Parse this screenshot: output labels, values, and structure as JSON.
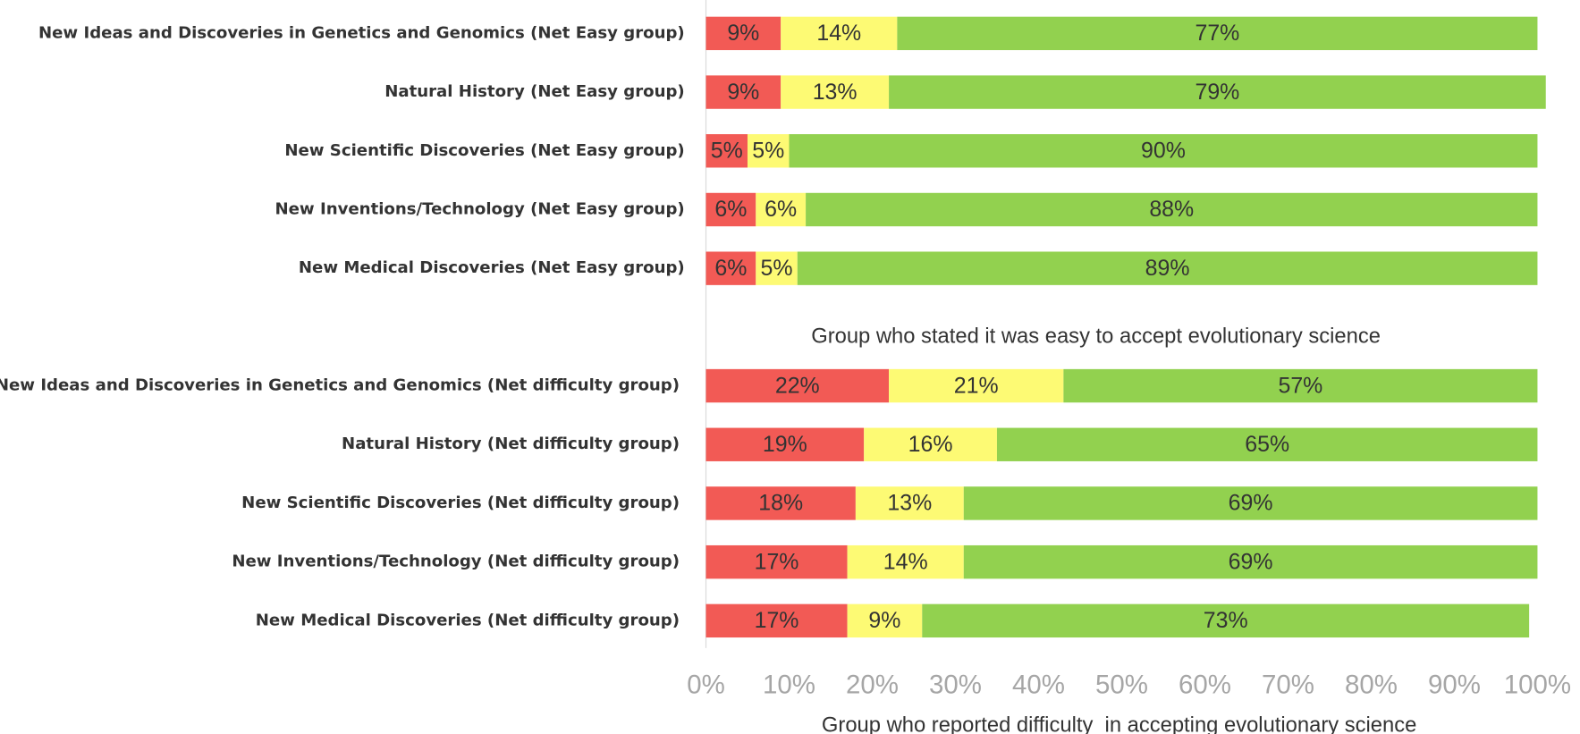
{
  "chart_data": {
    "type": "stacked_barh",
    "categories": [
      "New Ideas and Discoveries in Genetics and Genomics (Net Easy group)",
      "Natural History (Net Easy group)",
      "New Scientific Discoveries (Net Easy group)",
      "New Inventions/Technology (Net Easy group)",
      "New Medical Discoveries (Net Easy group)",
      "New Ideas and Discoveries in Genetics and Genomics (Net difficulty group)",
      "Natural History (Net difficulty group)",
      "New Scientific Discoveries (Net difficulty group)",
      "New Inventions/Technology (Net difficulty group)",
      "New Medical Discoveries (Net difficulty group)"
    ],
    "series": [
      {
        "color": "#f25a55",
        "values": [
          9,
          9,
          5,
          6,
          6,
          22,
          19,
          18,
          17,
          17
        ],
        "value_labels": [
          "9%",
          "9%",
          "5%",
          "6%",
          "6%",
          "22%",
          "19%",
          "18%",
          "17%",
          "17%"
        ]
      },
      {
        "color": "#fdfa74",
        "values": [
          14,
          13,
          5,
          6,
          5,
          21,
          16,
          13,
          14,
          9
        ],
        "value_labels": [
          "14%",
          "13%",
          "5%",
          "6%",
          "5%",
          "21%",
          "16%",
          "13%",
          "14%",
          "9%"
        ]
      },
      {
        "color": "#92d14f",
        "values": [
          77,
          79,
          90,
          88,
          89,
          57,
          65,
          69,
          69,
          73
        ],
        "value_labels": [
          "77%",
          "79%",
          "90%",
          "88%",
          "89%",
          "57%",
          "65%",
          "69%",
          "69%",
          "73%"
        ]
      }
    ],
    "annotation": "Group who stated it was easy to accept evolutionary science",
    "x_label": "Group who reported difficulty  in accepting evolutionary science",
    "xlim": [
      0,
      100
    ],
    "xticks": [
      {
        "value": 0,
        "label": "0%"
      },
      {
        "value": 10,
        "label": "10%"
      },
      {
        "value": 20,
        "label": "20%"
      },
      {
        "value": 30,
        "label": "30%"
      },
      {
        "value": 40,
        "label": "40%"
      },
      {
        "value": 50,
        "label": "50%"
      },
      {
        "value": 60,
        "label": "60%"
      },
      {
        "value": 70,
        "label": "70%"
      },
      {
        "value": 80,
        "label": "80%"
      },
      {
        "value": 90,
        "label": "90%"
      },
      {
        "value": 100,
        "label": "100%"
      }
    ]
  }
}
